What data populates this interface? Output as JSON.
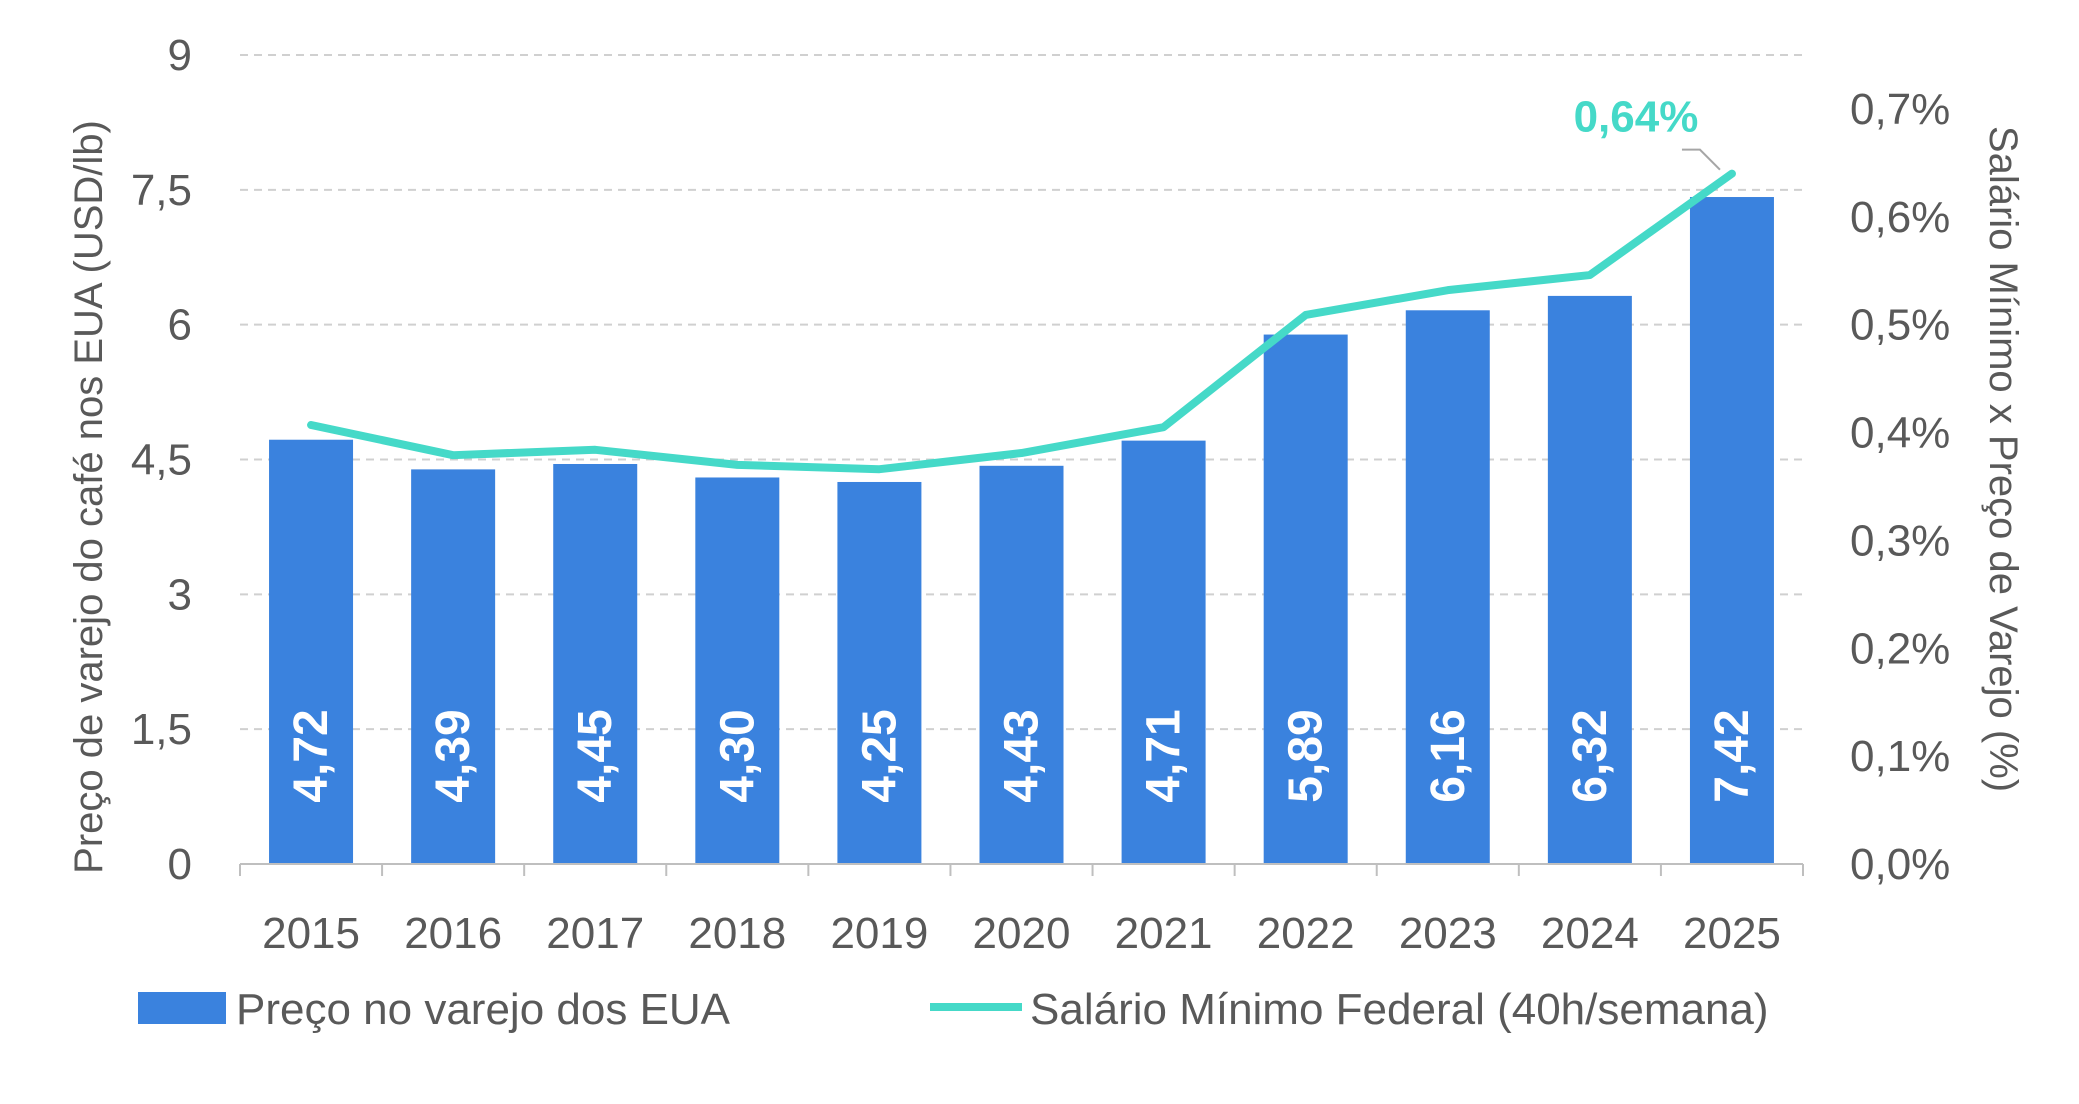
{
  "chart_data": {
    "type": "bar",
    "categories": [
      "2015",
      "2016",
      "2017",
      "2018",
      "2019",
      "2020",
      "2021",
      "2022",
      "2023",
      "2024",
      "2025"
    ],
    "series": [
      {
        "name": "Preço no varejo dos EUA",
        "axis": "left",
        "type": "bar",
        "color": "#3A82DE",
        "values": [
          4.72,
          4.39,
          4.45,
          4.3,
          4.25,
          4.43,
          4.71,
          5.89,
          6.16,
          6.32,
          7.42
        ],
        "labels": [
          "4,72",
          "4,39",
          "4,45",
          "4,30",
          "4,25",
          "4,43",
          "4,71",
          "5,89",
          "6,16",
          "6,32",
          "7,42"
        ]
      },
      {
        "name": "Salário Mínimo Federal (40h/semana)",
        "axis": "right",
        "type": "line",
        "color": "#45D9C8",
        "values": [
          0.407,
          0.379,
          0.384,
          0.37,
          0.366,
          0.381,
          0.405,
          0.509,
          0.532,
          0.546,
          0.64
        ]
      }
    ],
    "y_left": {
      "label": "Preço de varejo do café nos EUA (USD/lb)",
      "ylim": [
        0,
        9
      ],
      "ticks": [
        0,
        1.5,
        3,
        4.5,
        6,
        7.5,
        9
      ],
      "tick_labels": [
        "0",
        "1,5",
        "3",
        "4,5",
        "6",
        "7,5",
        "9"
      ]
    },
    "y_right": {
      "label": "Salário Mínimo x Preço de Varejo (%)",
      "ylim": [
        0,
        0.75
      ],
      "ticks": [
        0,
        0.1,
        0.2,
        0.3,
        0.4,
        0.5,
        0.6,
        0.7
      ],
      "tick_labels": [
        "0,0%",
        "0,1%",
        "0,2%",
        "0,3%",
        "0,4%",
        "0,5%",
        "0,6%",
        "0,7%"
      ]
    },
    "annotation": {
      "text": "0,64%",
      "series": 1,
      "index": 10,
      "color": "#45D9C8"
    },
    "grid": true,
    "legend": "bottom"
  }
}
